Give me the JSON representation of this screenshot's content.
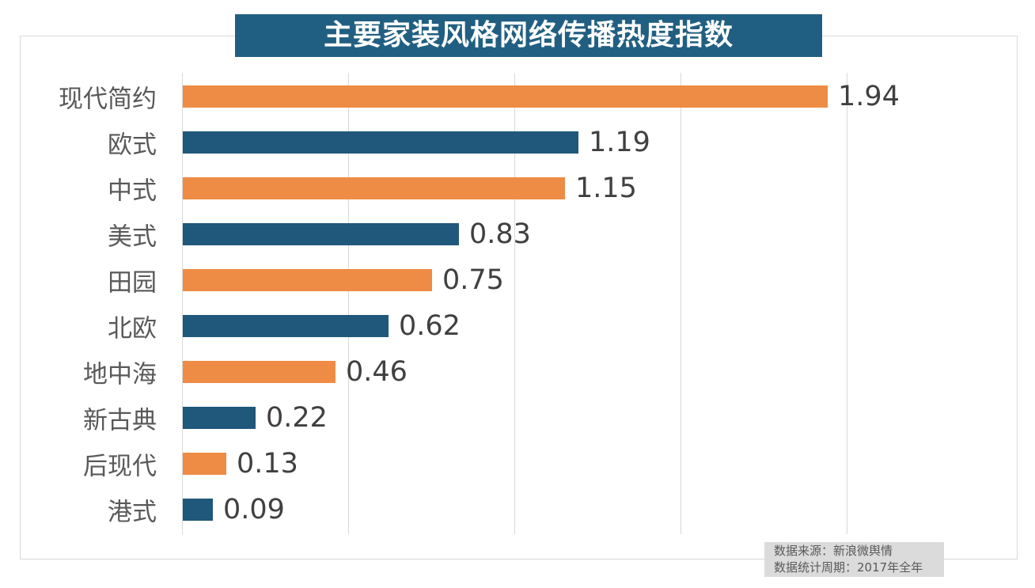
{
  "chart": {
    "title": "主要家装风格网络传播热度指数",
    "title_bg": "#215f82",
    "title_color": "#ffffff",
    "frame_border_color": "#d9d9d9",
    "gridline_color": "#d9d9d9",
    "source_lines": [
      "数据来源：新浪微舆情",
      "数据统计周期：2017年全年"
    ],
    "source_bg": "#dbdbdb",
    "source_text_color": "#595959",
    "category_text_color": "#595959",
    "value_text_color": "#404040"
  },
  "chart_data": {
    "type": "bar",
    "orientation": "horizontal",
    "title": "主要家装风格网络传播热度指数",
    "categories": [
      "现代简约",
      "欧式",
      "中式",
      "美式",
      "田园",
      "北欧",
      "地中海",
      "新古典",
      "后现代",
      "港式"
    ],
    "values": [
      1.94,
      1.19,
      1.15,
      0.83,
      0.75,
      0.62,
      0.46,
      0.22,
      0.13,
      0.09
    ],
    "value_labels": [
      "1.94",
      "1.19",
      "1.15",
      "0.83",
      "0.75",
      "0.62",
      "0.46",
      "0.22",
      "0.13",
      "0.09"
    ],
    "bar_colors_alternate": [
      "#ee8c45",
      "#1f587a"
    ],
    "xlim": [
      0,
      2.0
    ],
    "gridline_step": 0.5,
    "grid": true,
    "legend": false,
    "data_labels": true,
    "source": "数据来源：新浪微舆情",
    "period": "数据统计周期：2017年全年"
  }
}
